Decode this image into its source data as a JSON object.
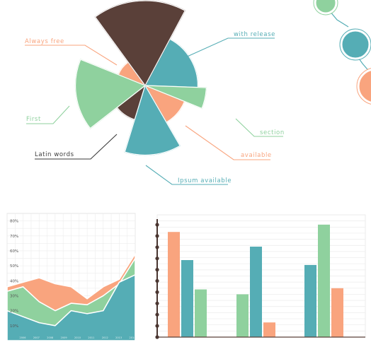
{
  "colors": {
    "brown": "#5a4039",
    "teal": "#55adb5",
    "green": "#8fd19e",
    "salmon": "#f9a47e",
    "dark_text": "#3a3a3a"
  },
  "chart_data": [
    {
      "type": "pie",
      "title": "",
      "slices": [
        {
          "label": "with release",
          "value": 0.62,
          "color": "#55adb5"
        },
        {
          "label": "section",
          "value": 0.72,
          "color": "#8fd19e"
        },
        {
          "label": "available",
          "value": 0.5,
          "color": "#f9a47e"
        },
        {
          "label": "Ipsum available",
          "value": 0.82,
          "color": "#55adb5"
        },
        {
          "label": "Latin words",
          "value": 0.42,
          "color": "#5a4039"
        },
        {
          "label": "First",
          "value": 0.82,
          "color": "#8fd19e"
        },
        {
          "label": "Always free",
          "value": 0.34,
          "color": "#f9a47e"
        },
        {
          "label": "",
          "value": 1.0,
          "color": "#5a4039"
        }
      ]
    },
    {
      "type": "area",
      "title": "",
      "xlabel": "",
      "ylabel": "",
      "y_ticks": [
        "80%",
        "70%",
        "60%",
        "50%",
        "40%",
        "30%",
        "20%",
        "10%"
      ],
      "x_tick_labels": [
        "2006",
        "2007",
        "2008",
        "2009",
        "2010",
        "2011",
        "2012",
        "2013",
        "2014"
      ],
      "ylim": [
        0,
        85
      ],
      "series": [
        {
          "color": "#f9a47e",
          "values": [
            36,
            39,
            42,
            38,
            36,
            28,
            36,
            41,
            58
          ]
        },
        {
          "color": "#8fd19e",
          "values": [
            33,
            36,
            26,
            20,
            25,
            24,
            30,
            38,
            55
          ]
        },
        {
          "color": "#55adb5",
          "values": [
            20,
            16,
            12,
            10,
            20,
            18,
            20,
            39,
            44
          ]
        }
      ]
    },
    {
      "type": "bar",
      "title": "",
      "xlabel": "",
      "ylabel": "",
      "categories": [
        "",
        "",
        ""
      ],
      "ylim": [
        0,
        100
      ],
      "series": [
        {
          "name": "",
          "color": "#f9a47e",
          "values": [
            86,
            12,
            40
          ]
        },
        {
          "name": "",
          "color": "#55adb5",
          "values": [
            63,
            74,
            59
          ]
        },
        {
          "name": "",
          "color": "#8fd19e",
          "values": [
            39,
            35,
            92
          ]
        }
      ],
      "group_order": [
        [
          "#f9a47e",
          "#55adb5",
          "#8fd19e"
        ],
        [
          "#8fd19e",
          "#55adb5",
          "#f9a47e"
        ],
        [
          "#55adb5",
          "#8fd19e",
          "#f9a47e"
        ]
      ]
    }
  ],
  "network": {
    "nodes": [
      {
        "color": "#8fd19e"
      },
      {
        "color": "#55adb5"
      },
      {
        "color": "#f9a47e"
      }
    ]
  }
}
